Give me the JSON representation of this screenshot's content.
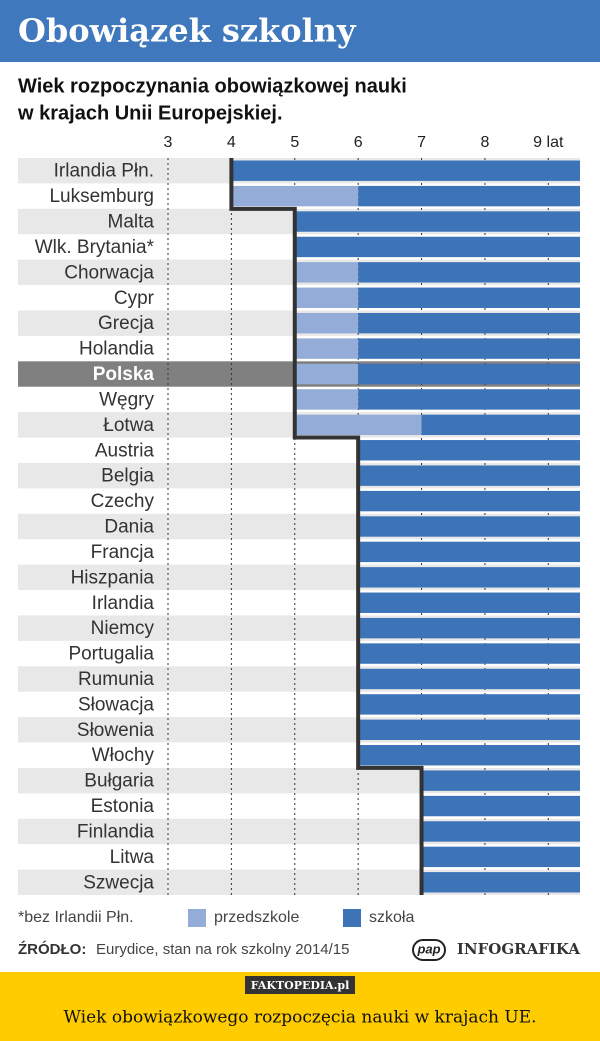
{
  "chart_data": {
    "type": "range-bar",
    "title": "Obowiązek szkolny",
    "subtitle": [
      "Wiek rozpoczynania obowiązkowej nauki",
      "w krajach Unii Europejskiej."
    ],
    "categories": [
      "Irlandia Płn.",
      "Luksemburg",
      "Malta",
      "Wlk. Brytania*",
      "Chorwacja",
      "Cypr",
      "Grecja",
      "Holandia",
      "Polska",
      "Węgry",
      "Łotwa",
      "Austria",
      "Belgia",
      "Czechy",
      "Dania",
      "Francja",
      "Hiszpania",
      "Irlandia",
      "Niemcy",
      "Portugalia",
      "Rumunia",
      "Słowacja",
      "Słowenia",
      "Włochy",
      "Bułgaria",
      "Estonia",
      "Finlandia",
      "Litwa",
      "Szwecja"
    ],
    "highlight_index": 8,
    "series": [
      {
        "name": "przedszkole",
        "color": "#94acd8",
        "values": [
          null,
          4,
          null,
          null,
          5,
          5,
          5,
          5,
          5,
          5,
          5,
          null,
          null,
          null,
          null,
          null,
          null,
          null,
          null,
          null,
          null,
          null,
          null,
          null,
          null,
          null,
          null,
          null,
          null
        ]
      },
      {
        "name": "szkoła",
        "color": "#3d74b8",
        "values": [
          4,
          6,
          5,
          5,
          6,
          6,
          6,
          6,
          6,
          6,
          7,
          6,
          6,
          6,
          6,
          6,
          6,
          6,
          6,
          6,
          6,
          6,
          6,
          6,
          7,
          7,
          7,
          7,
          7
        ]
      }
    ],
    "xlim": [
      3,
      9.5
    ],
    "xticks": [
      3,
      4,
      5,
      6,
      7,
      8,
      {
        "value": 9,
        "label": "9 lat"
      }
    ],
    "grid": true,
    "footnote": "*bez Irlandii Płn.",
    "source_label": "ŹRÓDŁO:",
    "source_text": "Eurydice, stan na rok szkolny 2014/15",
    "logo": "pap",
    "brand": "INFOGRAFIKA"
  },
  "footer": {
    "watermark": "FAKTOPEDIA.pl",
    "caption": "Wiek obowiązkowego rozpoczęcia nauki w krajach UE."
  }
}
